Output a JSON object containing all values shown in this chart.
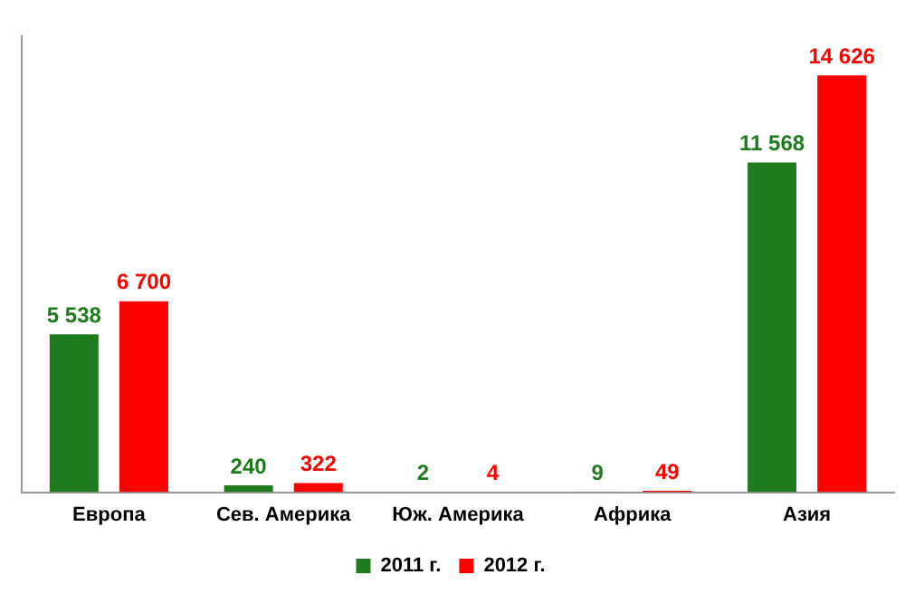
{
  "chart_data": {
    "type": "bar",
    "categories": [
      "Европа",
      "Сев. Америка",
      "Юж. Америка",
      "Африка",
      "Азия"
    ],
    "series": [
      {
        "name": "2011 г.",
        "color": "#1e7b1e",
        "values": [
          5538,
          240,
          2,
          9,
          11568
        ],
        "value_labels": [
          "5 538",
          "240",
          "2",
          "9",
          "11 568"
        ]
      },
      {
        "name": "2012 г.",
        "color": "#ff0000",
        "values": [
          6700,
          322,
          4,
          49,
          14626
        ],
        "value_labels": [
          "6 700",
          "322",
          "4",
          "49",
          "14 626"
        ]
      }
    ],
    "legend": "bottom",
    "grid": false,
    "tick_labels": "x"
  }
}
